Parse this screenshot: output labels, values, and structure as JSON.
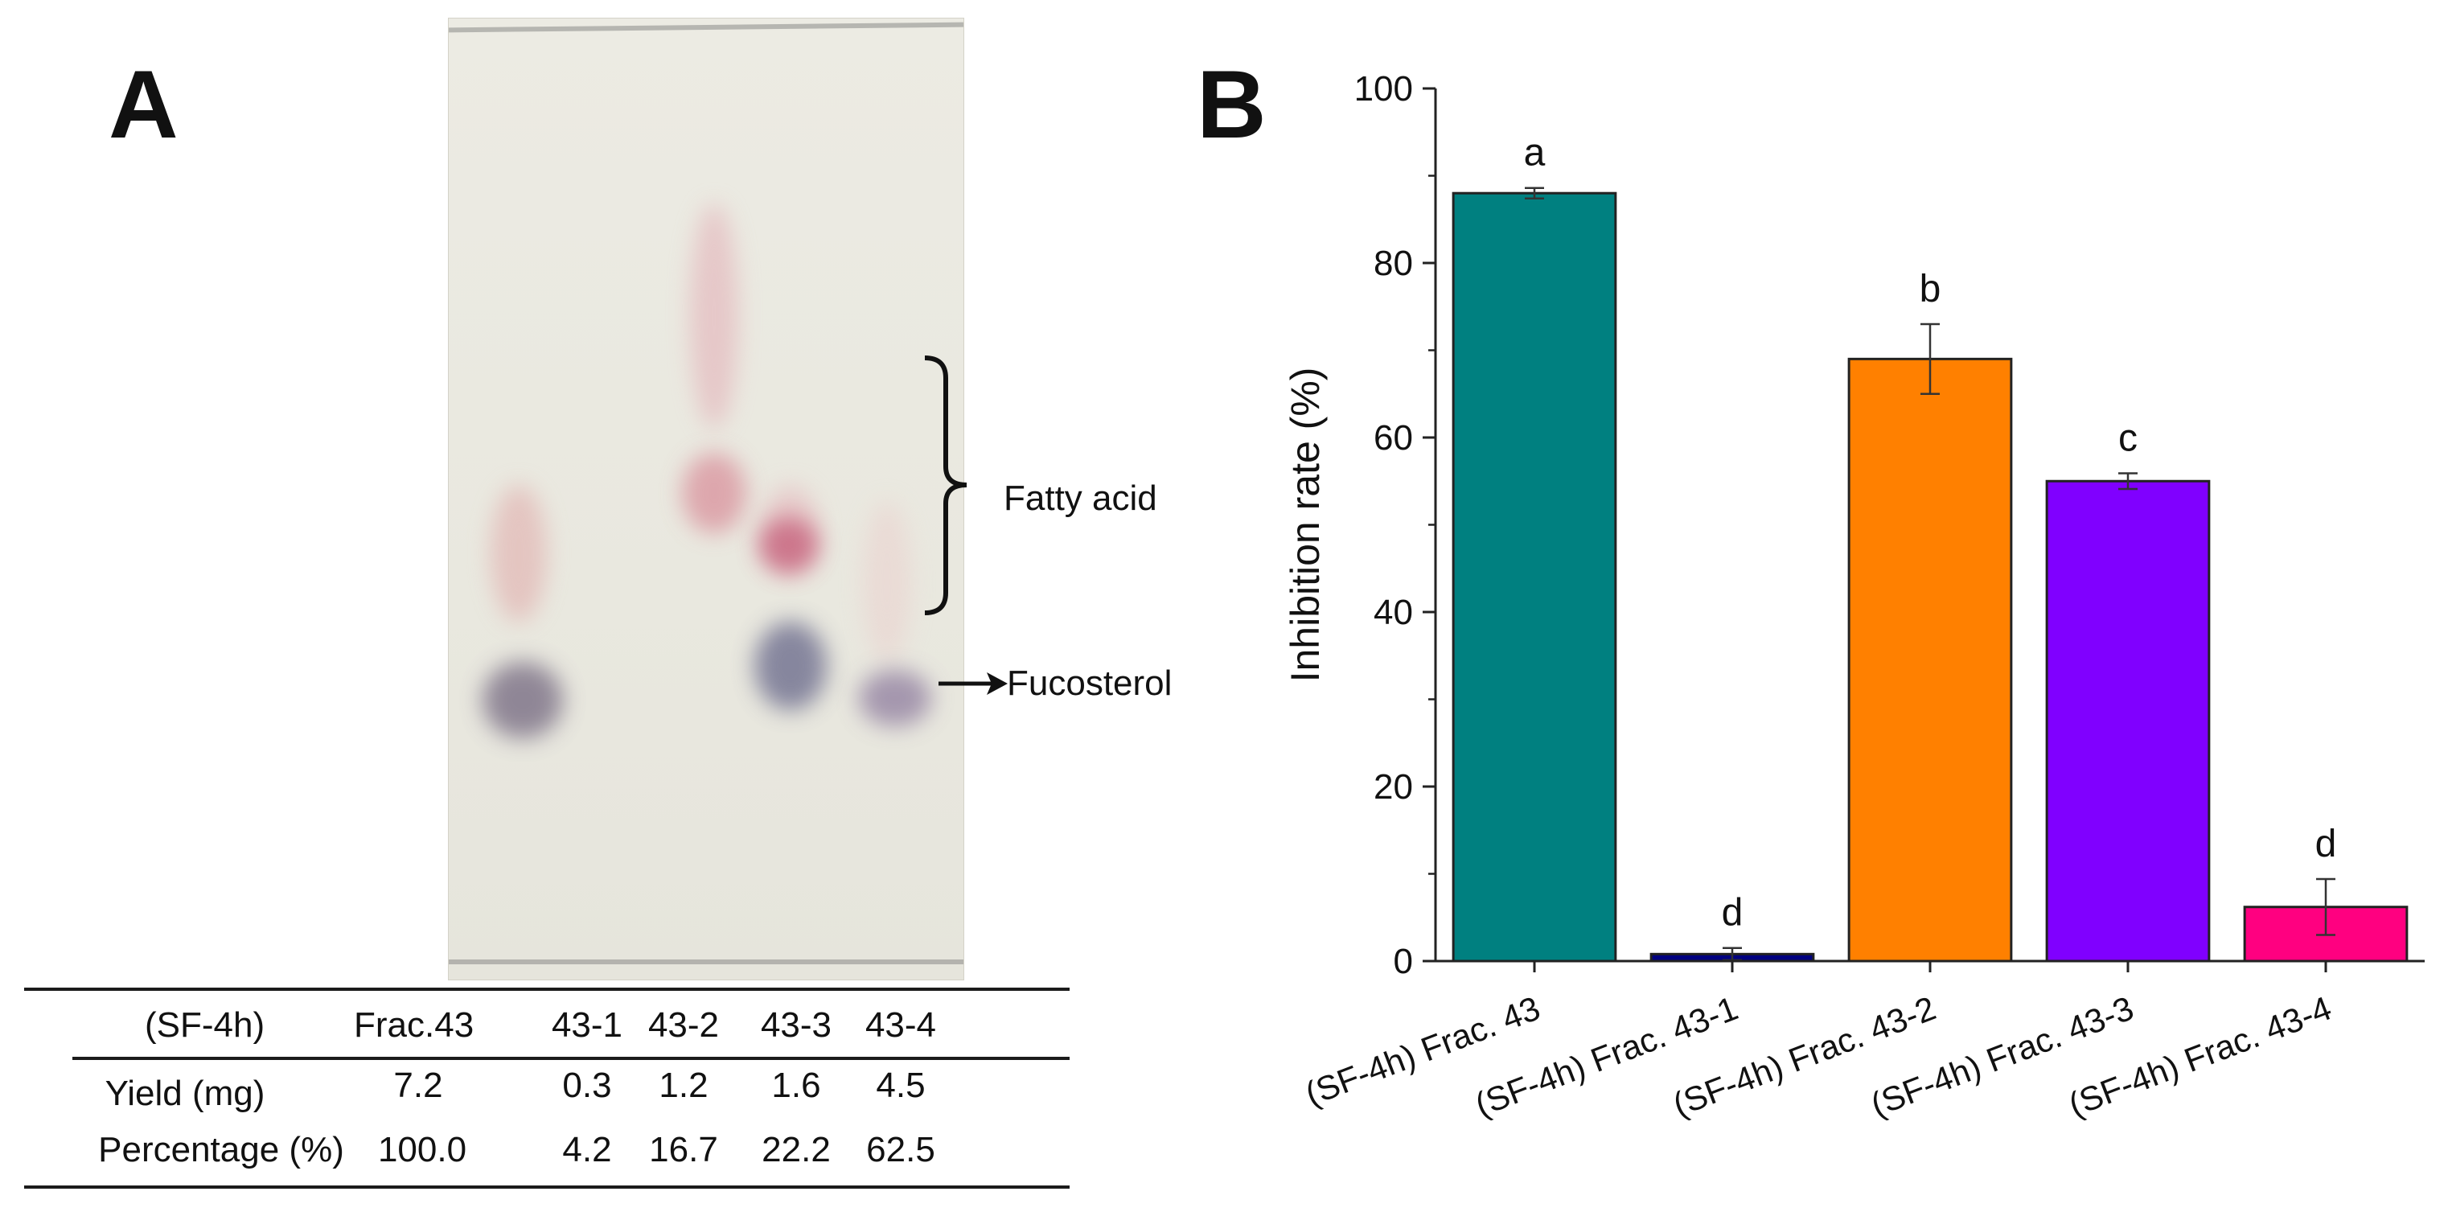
{
  "panel_a": {
    "letter": "A",
    "annotations": {
      "fatty_acid": "Fatty acid",
      "fucosterol": "Fucosterol"
    },
    "table": {
      "header_label": "(SF-4h)",
      "columns": [
        "Frac.43",
        "43-1",
        "43-2",
        "43-3",
        "43-4"
      ],
      "rows": [
        {
          "label": "Yield (mg)",
          "values": [
            "7.2",
            "0.3",
            "1.2",
            "1.6",
            "4.5"
          ]
        },
        {
          "label": "Percentage (%)",
          "values": [
            "100.0",
            "4.2",
            "16.7",
            "22.2",
            "62.5"
          ]
        }
      ]
    }
  },
  "panel_b": {
    "letter": "B"
  },
  "chart_data": {
    "type": "bar",
    "categories": [
      "(SF-4h) Frac. 43",
      "(SF-4h) Frac. 43-1",
      "(SF-4h) Frac. 43-2",
      "(SF-4h) Frac. 43-3",
      "(SF-4h) Frac. 43-4"
    ],
    "values": [
      88.0,
      0.8,
      69.0,
      55.0,
      6.2
    ],
    "errors": [
      0.6,
      0.7,
      4.0,
      0.9,
      3.2
    ],
    "significance_letters": [
      "a",
      "d",
      "b",
      "c",
      "d"
    ],
    "colors": [
      "#008080",
      "#000080",
      "#ff8000",
      "#8000ff",
      "#ff0080"
    ],
    "xlabel": "",
    "ylabel": "Inhibition rate (%)",
    "ylim": [
      0,
      100
    ],
    "yticks": [
      0,
      20,
      40,
      60,
      80,
      100
    ],
    "grid": false,
    "legend": "none"
  }
}
